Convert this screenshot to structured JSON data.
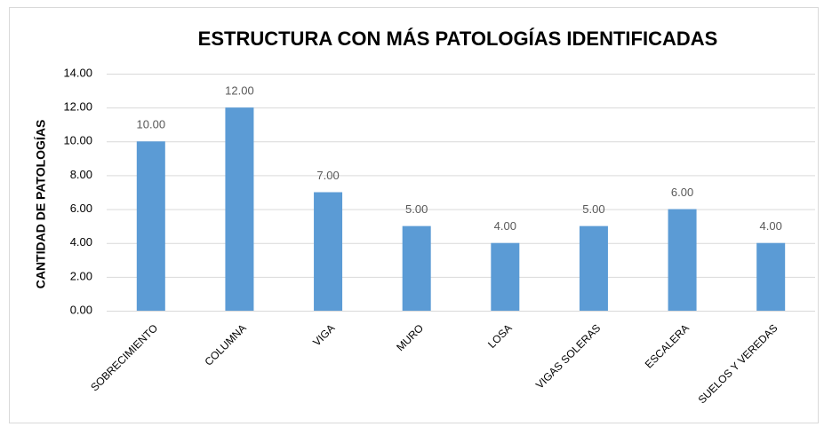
{
  "chart_data": {
    "type": "bar",
    "title": "ESTRUCTURA CON MÁS PATOLOGÍAS IDENTIFICADAS",
    "y_label": "CANTIDAD DE PATOLOGÍAS",
    "categories": [
      "SOBRECIMIENTO",
      "COLUMNA",
      "VIGA",
      "MURO",
      "LOSA",
      "VIGAS SOLERAS",
      "ESCALERA",
      "SUELOS Y VEREDAS"
    ],
    "values": [
      10,
      12,
      7,
      5,
      4,
      5,
      6,
      4
    ],
    "value_labels": [
      "10.00",
      "12.00",
      "7.00",
      "5.00",
      "4.00",
      "5.00",
      "6.00",
      "4.00"
    ],
    "color": "#5b9bd5",
    "ylim": [
      0,
      14
    ],
    "yticks": [
      {
        "value": 0,
        "label": "0.00"
      },
      {
        "value": 2,
        "label": "2.00"
      },
      {
        "value": 4,
        "label": "4.00"
      },
      {
        "value": 6,
        "label": "6.00"
      },
      {
        "value": 8,
        "label": "8.00"
      },
      {
        "value": 10,
        "label": "10.00"
      },
      {
        "value": 12,
        "label": "12.00"
      },
      {
        "value": 14,
        "label": "14.00"
      }
    ],
    "grid": true
  }
}
